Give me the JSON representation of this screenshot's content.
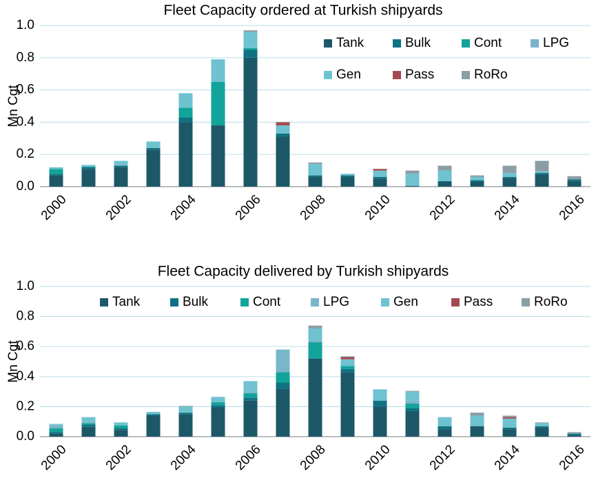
{
  "chart_data": [
    {
      "type": "bar",
      "stacked": true,
      "title": "Fleet Capacity ordered at Turkish shipyards",
      "ylabel": "Mn Cgt",
      "categories": [
        2000,
        null,
        2002,
        null,
        2004,
        null,
        2006,
        null,
        2008,
        null,
        2010,
        null,
        2012,
        null,
        2014,
        null,
        2016
      ],
      "ylim": [
        0,
        1
      ],
      "yticks": [
        {
          "value": 0,
          "label": "0.0"
        },
        {
          "value": 0.2,
          "label": "0.2"
        },
        {
          "value": 0.4,
          "label": "0.4"
        },
        {
          "value": 0.6,
          "label": "0.6"
        },
        {
          "value": 0.8,
          "label": "0.8"
        },
        {
          "value": 1,
          "label": "1.0"
        }
      ],
      "grid": true,
      "legend": "upper right",
      "series": [
        {
          "name": "Tank",
          "color": "#1d5868",
          "values": [
            0.07,
            0.11,
            0.12,
            0.23,
            0.4,
            0.38,
            0.8,
            0.31,
            0.06,
            0.06,
            0.05,
            0.005,
            0.03,
            0.03,
            0.055,
            0.075,
            0.035
          ]
        },
        {
          "name": "Bulk",
          "color": "#0e7282",
          "values": [
            0.01,
            0.01,
            0.01,
            0.01,
            0.03,
            0,
            0.05,
            0.02,
            0.01,
            0.01,
            0.01,
            0,
            0.005,
            0.01,
            0.005,
            0.01,
            0.01
          ]
        },
        {
          "name": "Cont",
          "color": "#12a39a",
          "values": [
            0.03,
            0.005,
            0,
            0,
            0.06,
            0.27,
            0.01,
            0,
            0,
            0,
            0,
            0,
            0,
            0,
            0,
            0,
            0
          ]
        },
        {
          "name": "LPG",
          "color": "#79b5cb",
          "values": [
            0,
            0,
            0.01,
            0,
            0,
            0,
            0,
            0,
            0,
            0,
            0,
            0,
            0,
            0,
            0,
            0,
            0
          ]
        },
        {
          "name": "Gen",
          "color": "#6fc2d0",
          "values": [
            0.01,
            0.01,
            0.02,
            0.04,
            0.09,
            0.14,
            0.1,
            0.05,
            0.07,
            0.01,
            0.04,
            0.075,
            0.065,
            0.02,
            0.025,
            0.01,
            0
          ]
        },
        {
          "name": "Pass",
          "color": "#a34a50",
          "values": [
            0,
            0,
            0,
            0,
            0,
            0,
            0,
            0.02,
            0,
            0,
            0.01,
            0,
            0,
            0,
            0,
            0,
            0
          ]
        },
        {
          "name": "RoRo",
          "color": "#8b9ea6",
          "values": [
            0,
            0,
            0,
            0,
            0,
            0,
            0.01,
            0,
            0.01,
            0,
            0,
            0.02,
            0.03,
            0.01,
            0.045,
            0.065,
            0.02
          ]
        }
      ]
    },
    {
      "type": "bar",
      "stacked": true,
      "title": "Fleet Capacity delivered by Turkish shipyards",
      "ylabel": "Mn Cgt",
      "categories": [
        2000,
        null,
        2002,
        null,
        2004,
        null,
        2006,
        null,
        2008,
        null,
        2010,
        null,
        2012,
        null,
        2014,
        null,
        2016
      ],
      "ylim": [
        0,
        1
      ],
      "yticks": [
        {
          "value": 0,
          "label": "0.0"
        },
        {
          "value": 0.2,
          "label": "0.2"
        },
        {
          "value": 0.4,
          "label": "0.4"
        },
        {
          "value": 0.6,
          "label": "0.6"
        },
        {
          "value": 0.8,
          "label": "0.8"
        },
        {
          "value": 1,
          "label": "1.0"
        }
      ],
      "grid": true,
      "legend": "upper right",
      "series": [
        {
          "name": "Tank",
          "color": "#1d5868",
          "values": [
            0.02,
            0.065,
            0.045,
            0.14,
            0.15,
            0.195,
            0.24,
            0.32,
            0.52,
            0.43,
            0.2,
            0.17,
            0.05,
            0.07,
            0.05,
            0.06,
            0.01
          ]
        },
        {
          "name": "Bulk",
          "color": "#0e7282",
          "values": [
            0.01,
            0.015,
            0.01,
            0.01,
            0.01,
            0.015,
            0.02,
            0.04,
            0,
            0.02,
            0.04,
            0.02,
            0.02,
            0,
            0.01,
            0.01,
            0.01
          ]
        },
        {
          "name": "Cont",
          "color": "#12a39a",
          "values": [
            0.025,
            0.01,
            0.02,
            0,
            0,
            0.02,
            0.03,
            0.07,
            0.11,
            0.02,
            0,
            0.03,
            0,
            0,
            0,
            0,
            0
          ]
        },
        {
          "name": "LPG",
          "color": "#79b5cb",
          "values": [
            0.02,
            0.01,
            0,
            0,
            0,
            0,
            0.01,
            0.15,
            0.01,
            0,
            0,
            0.02,
            0,
            0,
            0,
            0,
            0
          ]
        },
        {
          "name": "Gen",
          "color": "#6fc2d0",
          "values": [
            0.01,
            0.03,
            0.02,
            0.015,
            0.04,
            0.035,
            0.07,
            0,
            0.08,
            0.045,
            0.075,
            0.06,
            0.06,
            0.07,
            0.06,
            0.02,
            0
          ]
        },
        {
          "name": "Pass",
          "color": "#a34a50",
          "values": [
            0,
            0,
            0,
            0,
            0,
            0,
            0,
            0,
            0,
            0.015,
            0,
            0,
            0,
            0,
            0.01,
            0,
            0
          ]
        },
        {
          "name": "RoRo",
          "color": "#8b9ea6",
          "values": [
            0,
            0,
            0,
            0,
            0.005,
            0,
            0,
            0,
            0.02,
            0.005,
            0,
            0.005,
            0,
            0.02,
            0.01,
            0.005,
            0.01
          ]
        }
      ]
    }
  ]
}
